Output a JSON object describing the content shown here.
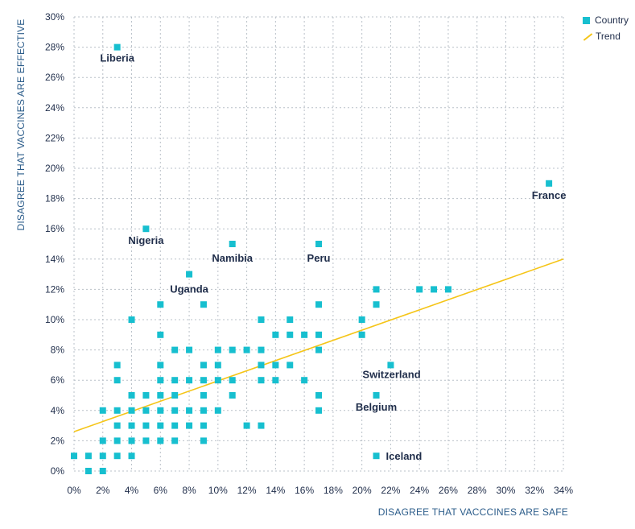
{
  "colors": {
    "country": "#17bfcf",
    "trend": "#f5c518",
    "grid": "#b9c0c8",
    "text": "#1f2d4a",
    "axis_title": "#2b5c8a"
  },
  "legend": [
    {
      "label": "Country",
      "kind": "square"
    },
    {
      "label": "Trend",
      "kind": "line"
    }
  ],
  "chart_data": {
    "type": "scatter",
    "xlabel": "DISAGREE THAT VACCCINES ARE SAFE",
    "ylabel": "DISAGREE THAT VACCINES ARE EFFECTIVE",
    "xlim": [
      0,
      34
    ],
    "ylim": [
      0,
      30
    ],
    "x_ticks": [
      "0%",
      "2%",
      "4%",
      "6%",
      "8%",
      "10%",
      "12%",
      "14%",
      "16%",
      "18%",
      "20%",
      "22%",
      "24%",
      "26%",
      "28%",
      "30%",
      "32%",
      "34%"
    ],
    "y_ticks": [
      "0%",
      "2%",
      "4%",
      "6%",
      "8%",
      "10%",
      "12%",
      "14%",
      "16%",
      "18%",
      "20%",
      "22%",
      "24%",
      "26%",
      "28%",
      "30%"
    ],
    "grid": "dotted",
    "legend_position": "top-right",
    "series": [
      {
        "name": "Country",
        "points": [
          [
            0,
            1
          ],
          [
            1,
            1
          ],
          [
            1,
            0
          ],
          [
            2,
            0
          ],
          [
            2,
            1
          ],
          [
            2,
            2
          ],
          [
            2,
            4
          ],
          [
            3,
            1
          ],
          [
            3,
            2
          ],
          [
            3,
            3
          ],
          [
            3,
            4
          ],
          [
            3,
            6
          ],
          [
            3,
            7
          ],
          [
            3,
            28
          ],
          [
            4,
            1
          ],
          [
            4,
            2
          ],
          [
            4,
            3
          ],
          [
            4,
            4
          ],
          [
            4,
            5
          ],
          [
            4,
            10
          ],
          [
            5,
            2
          ],
          [
            5,
            3
          ],
          [
            5,
            4
          ],
          [
            5,
            5
          ],
          [
            5,
            16
          ],
          [
            6,
            2
          ],
          [
            6,
            3
          ],
          [
            6,
            4
          ],
          [
            6,
            5
          ],
          [
            6,
            6
          ],
          [
            6,
            7
          ],
          [
            6,
            9
          ],
          [
            6,
            11
          ],
          [
            7,
            2
          ],
          [
            7,
            3
          ],
          [
            7,
            4
          ],
          [
            7,
            5
          ],
          [
            7,
            6
          ],
          [
            7,
            8
          ],
          [
            8,
            3
          ],
          [
            8,
            4
          ],
          [
            8,
            6
          ],
          [
            8,
            8
          ],
          [
            8,
            13
          ],
          [
            9,
            2
          ],
          [
            9,
            3
          ],
          [
            9,
            4
          ],
          [
            9,
            5
          ],
          [
            9,
            6
          ],
          [
            9,
            7
          ],
          [
            9,
            11
          ],
          [
            10,
            4
          ],
          [
            10,
            6
          ],
          [
            10,
            7
          ],
          [
            10,
            8
          ],
          [
            11,
            5
          ],
          [
            11,
            6
          ],
          [
            11,
            8
          ],
          [
            11,
            15
          ],
          [
            12,
            3
          ],
          [
            12,
            8
          ],
          [
            13,
            3
          ],
          [
            13,
            6
          ],
          [
            13,
            7
          ],
          [
            13,
            8
          ],
          [
            13,
            10
          ],
          [
            14,
            6
          ],
          [
            14,
            7
          ],
          [
            14,
            9
          ],
          [
            15,
            7
          ],
          [
            15,
            9
          ],
          [
            15,
            10
          ],
          [
            16,
            6
          ],
          [
            16,
            9
          ],
          [
            17,
            4
          ],
          [
            17,
            5
          ],
          [
            17,
            8
          ],
          [
            17,
            9
          ],
          [
            17,
            11
          ],
          [
            17,
            15
          ],
          [
            20,
            9
          ],
          [
            20,
            10
          ],
          [
            21,
            1
          ],
          [
            21,
            5
          ],
          [
            21,
            11
          ],
          [
            21,
            12
          ],
          [
            22,
            7
          ],
          [
            24,
            12
          ],
          [
            25,
            12
          ],
          [
            26,
            12
          ],
          [
            33,
            19
          ]
        ]
      },
      {
        "name": "Trend",
        "line": [
          [
            0,
            2.6
          ],
          [
            34,
            14
          ]
        ]
      }
    ],
    "annotations": [
      {
        "text": "Liberia",
        "x": 3,
        "y": 28
      },
      {
        "text": "Nigeria",
        "x": 5,
        "y": 16
      },
      {
        "text": "Namibia",
        "x": 11,
        "y": 15
      },
      {
        "text": "Peru",
        "x": 17,
        "y": 15
      },
      {
        "text": "Uganda",
        "x": 8,
        "y": 13
      },
      {
        "text": "France",
        "x": 33,
        "y": 19
      },
      {
        "text": "Switzerland",
        "x": 22,
        "y": 7
      },
      {
        "text": "Belgium",
        "x": 21,
        "y": 5
      },
      {
        "text": "Iceland",
        "x": 21,
        "y": 1
      }
    ]
  }
}
